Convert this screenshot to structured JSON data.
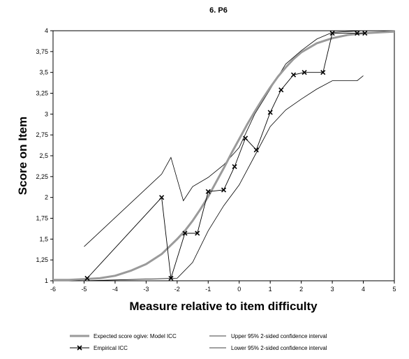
{
  "chart_data": {
    "type": "line",
    "title": "6. P6",
    "xlabel": "Measure relative to item difficulty",
    "ylabel": "Score on Item",
    "xlim": [
      -6,
      5
    ],
    "ylim": [
      1,
      4
    ],
    "x_ticks": [
      -6,
      -5,
      -4,
      -3,
      -2,
      -1,
      0,
      1,
      2,
      3,
      4,
      5
    ],
    "y_ticks": [
      1,
      1.25,
      1.5,
      1.75,
      2,
      2.25,
      2.5,
      2.75,
      3,
      3.25,
      3.5,
      3.75,
      4
    ],
    "x_tick_labels": [
      "-6",
      "-5",
      "-4",
      "-3",
      "-2",
      "-1",
      "0",
      "1",
      "2",
      "3",
      "4",
      "5"
    ],
    "y_tick_labels": [
      "1",
      "1,25",
      "1,5",
      "1,75",
      "2",
      "2,25",
      "2,5",
      "2,75",
      "3",
      "3,25",
      "3,5",
      "3,75",
      "4"
    ],
    "grid": false,
    "legend_position": "bottom",
    "colors": {
      "expected": "#9a9a9a",
      "empirical": "#000000",
      "confidence": "#000000"
    },
    "series": [
      {
        "name": "Expected score ogive: Model ICC",
        "style": "thick-gray-curve",
        "x": [
          -6,
          -5.5,
          -5,
          -4.5,
          -4,
          -3.5,
          -3,
          -2.5,
          -2,
          -1.75,
          -1.5,
          -1.25,
          -1,
          -0.75,
          -0.5,
          -0.25,
          0,
          0.25,
          0.5,
          0.75,
          1,
          1.25,
          1.5,
          1.75,
          2,
          2.5,
          3,
          3.5,
          4,
          4.5,
          5
        ],
        "y": [
          1.01,
          1.01,
          1.02,
          1.03,
          1.06,
          1.12,
          1.2,
          1.32,
          1.5,
          1.6,
          1.72,
          1.86,
          2.01,
          2.18,
          2.35,
          2.53,
          2.7,
          2.87,
          3.03,
          3.18,
          3.32,
          3.45,
          3.56,
          3.66,
          3.74,
          3.85,
          3.91,
          3.95,
          3.97,
          3.98,
          3.99
        ]
      },
      {
        "name": "Empirical ICC",
        "style": "line-with-x-markers",
        "x": [
          -4.9,
          -2.5,
          -2.2,
          -1.75,
          -1.35,
          -1.0,
          -0.5,
          -0.15,
          0.2,
          0.55,
          1.0,
          1.35,
          1.75,
          2.1,
          2.7,
          3.0,
          3.8,
          4.05
        ],
        "y": [
          1.03,
          2.0,
          1.03,
          1.57,
          1.57,
          2.07,
          2.09,
          2.37,
          2.71,
          2.57,
          3.02,
          3.29,
          3.47,
          3.5,
          3.5,
          3.97,
          3.97,
          3.97
        ]
      },
      {
        "name": "Upper 95% 2-sided confidence interval",
        "style": "thin-line",
        "x": [
          -5.0,
          -2.5,
          -2.2,
          -1.8,
          -1.5,
          -1.0,
          -0.5,
          0,
          0.5,
          1.0,
          1.5,
          2.0,
          2.5,
          3.0,
          3.5,
          4.0,
          4.5
        ],
        "y": [
          1.41,
          2.28,
          2.48,
          1.96,
          2.13,
          2.24,
          2.39,
          2.6,
          3.0,
          3.3,
          3.6,
          3.76,
          3.9,
          3.98,
          3.99,
          4.0,
          4.0
        ]
      },
      {
        "name": "Lower 95% 2-sided confidence interval",
        "style": "thin-line",
        "x": [
          -5.0,
          -2.0,
          -1.5,
          -1.0,
          -0.5,
          0,
          0.5,
          1.0,
          1.5,
          2.0,
          2.5,
          3.0,
          3.5,
          3.8,
          4.0
        ],
        "y": [
          1.0,
          1.03,
          1.22,
          1.6,
          1.9,
          2.15,
          2.5,
          2.85,
          3.05,
          3.18,
          3.3,
          3.4,
          3.4,
          3.4,
          3.46
        ]
      }
    ]
  },
  "legend": {
    "expected": "Expected score ogive: Model ICC",
    "empirical": "Empirical ICC",
    "upper": "Upper 95% 2-sided confidence interval",
    "lower": "Lower 95% 2-sided confidence interval"
  }
}
